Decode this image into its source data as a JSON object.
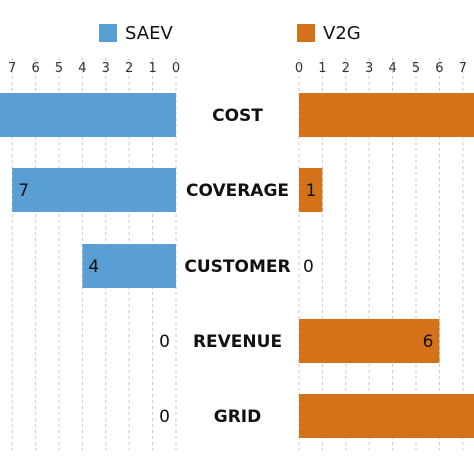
{
  "chart_data": {
    "type": "bar",
    "orientation": "horizontal-butterfly",
    "categories": [
      "COST",
      "COVERAGE",
      "CUSTOMER",
      "REVENUE",
      "GRID"
    ],
    "series": [
      {
        "name": "SAEV",
        "values": [
          8,
          7,
          4,
          0,
          0
        ],
        "color": "#5a9fd4",
        "data_labels": [
          "",
          "7",
          "4",
          "0",
          "0"
        ]
      },
      {
        "name": "V2G",
        "values": [
          8,
          1,
          0,
          6,
          8
        ],
        "color": "#d4721a",
        "data_labels": [
          "",
          "1",
          "0",
          "6",
          ""
        ]
      }
    ],
    "left_ticks": [
      "7",
      "6",
      "5",
      "4",
      "3",
      "2",
      "1",
      "0"
    ],
    "right_ticks": [
      "0",
      "1",
      "2",
      "3",
      "4",
      "5",
      "6",
      "7"
    ],
    "xlim": [
      0,
      8
    ],
    "grid": true,
    "legend_position": "top"
  }
}
